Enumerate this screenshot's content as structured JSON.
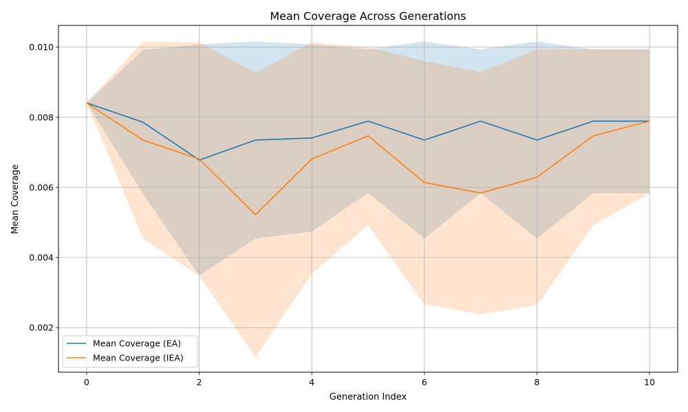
{
  "chart_data": {
    "type": "line",
    "title": "Mean Coverage Across Generations",
    "xlabel": "Generation Index",
    "ylabel": "Mean Coverage",
    "x": [
      0,
      1,
      2,
      3,
      4,
      5,
      6,
      7,
      8,
      9,
      10
    ],
    "xlim": [
      -0.5,
      10.5
    ],
    "ylim": [
      0.00073,
      0.01062
    ],
    "xticks": [
      0,
      2,
      4,
      6,
      8,
      10
    ],
    "xtick_labels": [
      "0",
      "2",
      "4",
      "6",
      "8",
      "10"
    ],
    "yticks": [
      0.002,
      0.004,
      0.006,
      0.008,
      0.01
    ],
    "ytick_labels": [
      "0.002",
      "0.004",
      "0.006",
      "0.008",
      "0.010"
    ],
    "grid": true,
    "legend_position": "lower-left",
    "series": [
      {
        "name": "Mean Coverage (EA)",
        "color": "#1f77b4",
        "values": [
          0.00841,
          0.00786,
          0.00678,
          0.00735,
          0.00741,
          0.00789,
          0.00735,
          0.00789,
          0.00735,
          0.00789,
          0.00789
        ],
        "band_lower": [
          0.00841,
          0.00582,
          0.00348,
          0.00454,
          0.00474,
          0.00584,
          0.00454,
          0.00584,
          0.00454,
          0.00584,
          0.00584
        ],
        "band_upper": [
          0.00841,
          0.00992,
          0.01008,
          0.01016,
          0.01008,
          0.00994,
          0.01016,
          0.00994,
          0.01016,
          0.00994,
          0.00994
        ],
        "band_color": "#1f77b4"
      },
      {
        "name": "Mean Coverage (IEA)",
        "color": "#ff7f0e",
        "values": [
          0.00841,
          0.00735,
          0.00681,
          0.00522,
          0.00681,
          0.00747,
          0.00614,
          0.00584,
          0.00629,
          0.00747,
          0.00789
        ],
        "band_lower": [
          0.00841,
          0.00454,
          0.00348,
          0.00116,
          0.00354,
          0.00492,
          0.00267,
          0.00238,
          0.00264,
          0.00492,
          0.00584
        ],
        "band_upper": [
          0.00841,
          0.01016,
          0.01014,
          0.00927,
          0.01014,
          0.01,
          0.0096,
          0.00929,
          0.00994,
          0.00994,
          0.00994
        ],
        "band_color": "#ff7f0e"
      }
    ]
  }
}
